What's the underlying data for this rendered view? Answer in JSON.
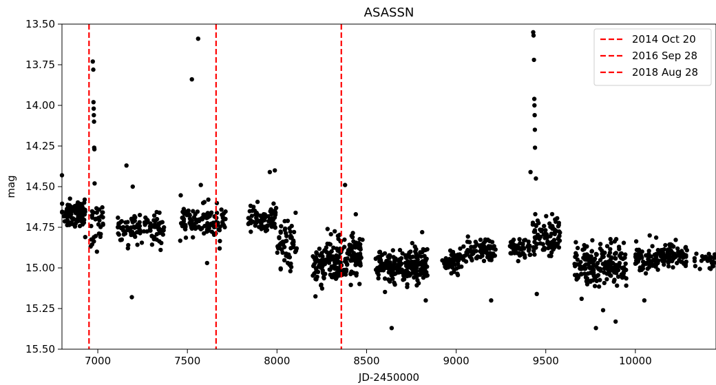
{
  "chart_data": {
    "type": "scatter",
    "title": "ASASSN",
    "xlabel": "JD-2450000",
    "ylabel": "mag",
    "xlim": [
      6800,
      10450
    ],
    "ylim": [
      15.5,
      13.5
    ],
    "y_inverted": true,
    "xticks": [
      "7000",
      "7500",
      "8000",
      "8500",
      "9000",
      "9500",
      "10000"
    ],
    "xtick_values": [
      7000,
      7500,
      8000,
      8500,
      9000,
      9500,
      10000
    ],
    "yticks": [
      "13.50",
      "13.75",
      "14.00",
      "14.25",
      "14.50",
      "14.75",
      "15.00",
      "15.25",
      "15.50"
    ],
    "ytick_values": [
      13.5,
      13.75,
      14.0,
      14.25,
      14.5,
      14.75,
      15.0,
      15.25,
      15.5
    ],
    "grid": false,
    "legend_position": "top-right",
    "point_color": "#000000",
    "vlines": [
      {
        "label": "2014 Oct 20",
        "x": 6951,
        "color": "#ff0000",
        "style": "dashed"
      },
      {
        "label": "2016 Sep 28",
        "x": 7660,
        "color": "#ff0000",
        "style": "dashed"
      },
      {
        "label": "2018 Aug 28",
        "x": 8359,
        "color": "#ff0000",
        "style": "dashed"
      }
    ],
    "seasons": [
      {
        "x_start": 6800,
        "x_end": 6930,
        "mag_mean": 14.67,
        "mag_spread": 0.04,
        "count": 90
      },
      {
        "x_start": 6960,
        "x_end": 7030,
        "mag_mean": 14.72,
        "mag_spread": 0.07,
        "count": 30
      },
      {
        "x_start": 7110,
        "x_end": 7370,
        "mag_mean": 14.76,
        "mag_spread": 0.045,
        "count": 110
      },
      {
        "x_start": 7460,
        "x_end": 7720,
        "mag_mean": 14.71,
        "mag_spread": 0.045,
        "count": 110
      },
      {
        "x_start": 7840,
        "x_end": 8000,
        "mag_mean": 14.69,
        "mag_spread": 0.04,
        "count": 70
      },
      {
        "x_start": 8000,
        "x_end": 8110,
        "mag_mean": 14.84,
        "mag_spread": 0.07,
        "count": 60
      },
      {
        "x_start": 8200,
        "x_end": 8340,
        "mag_mean": 14.96,
        "mag_spread": 0.07,
        "count": 110
      },
      {
        "x_start": 8340,
        "x_end": 8480,
        "mag_mean": 14.93,
        "mag_spread": 0.07,
        "count": 110
      },
      {
        "x_start": 8550,
        "x_end": 8840,
        "mag_mean": 14.99,
        "mag_spread": 0.05,
        "count": 230
      },
      {
        "x_start": 8920,
        "x_end": 9060,
        "mag_mean": 14.96,
        "mag_spread": 0.035,
        "count": 60
      },
      {
        "x_start": 9060,
        "x_end": 9220,
        "mag_mean": 14.88,
        "mag_spread": 0.04,
        "count": 80
      },
      {
        "x_start": 9300,
        "x_end": 9420,
        "mag_mean": 14.88,
        "mag_spread": 0.035,
        "count": 50
      },
      {
        "x_start": 9420,
        "x_end": 9580,
        "mag_mean": 14.79,
        "mag_spread": 0.06,
        "count": 90
      },
      {
        "x_start": 9660,
        "x_end": 9950,
        "mag_mean": 14.98,
        "mag_spread": 0.06,
        "count": 190
      },
      {
        "x_start": 10000,
        "x_end": 10110,
        "mag_mean": 14.95,
        "mag_spread": 0.04,
        "count": 50
      },
      {
        "x_start": 10110,
        "x_end": 10290,
        "mag_mean": 14.93,
        "mag_spread": 0.035,
        "count": 90
      },
      {
        "x_start": 10330,
        "x_end": 10450,
        "mag_mean": 14.95,
        "mag_spread": 0.03,
        "count": 25
      }
    ],
    "outliers": [
      [
        6800,
        14.43
      ],
      [
        6972,
        13.73
      ],
      [
        6975,
        13.78
      ],
      [
        6976,
        13.98
      ],
      [
        6977,
        14.02
      ],
      [
        6978,
        14.06
      ],
      [
        6979,
        14.1
      ],
      [
        6980,
        14.26
      ],
      [
        6981,
        14.27
      ],
      [
        6982,
        14.48
      ],
      [
        6930,
        14.81
      ],
      [
        6995,
        14.9
      ],
      [
        7160,
        14.37
      ],
      [
        7190,
        15.18
      ],
      [
        7195,
        14.5
      ],
      [
        7170,
        14.86
      ],
      [
        7525,
        13.84
      ],
      [
        7560,
        13.59
      ],
      [
        7575,
        14.49
      ],
      [
        7610,
        14.97
      ],
      [
        7680,
        14.88
      ],
      [
        7960,
        14.41
      ],
      [
        7988,
        14.4
      ],
      [
        8075,
        15.02
      ],
      [
        8070,
        14.98
      ],
      [
        8380,
        14.49
      ],
      [
        8440,
        14.67
      ],
      [
        8640,
        15.37
      ],
      [
        8810,
        14.78
      ],
      [
        8830,
        15.2
      ],
      [
        9195,
        15.2
      ],
      [
        9430,
        13.55
      ],
      [
        9432,
        13.57
      ],
      [
        9434,
        13.72
      ],
      [
        9436,
        13.96
      ],
      [
        9437,
        14.0
      ],
      [
        9438,
        14.06
      ],
      [
        9439,
        14.15
      ],
      [
        9440,
        14.26
      ],
      [
        9415,
        14.41
      ],
      [
        9445,
        14.45
      ],
      [
        9450,
        15.16
      ],
      [
        9760,
        14.83
      ],
      [
        9700,
        15.19
      ],
      [
        9820,
        15.26
      ],
      [
        9890,
        15.33
      ],
      [
        9780,
        15.37
      ],
      [
        10080,
        14.8
      ],
      [
        10050,
        15.2
      ]
    ]
  }
}
